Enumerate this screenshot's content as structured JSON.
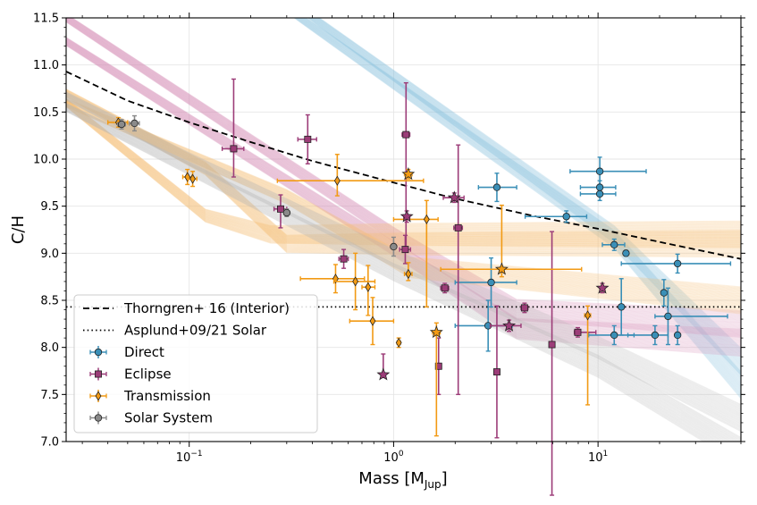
{
  "chart_data": {
    "type": "scatter",
    "xscale": "log",
    "xlim": [
      0.025,
      50
    ],
    "ylim": [
      7.0,
      11.5
    ],
    "xlabel_main": "Mass [M",
    "xlabel_sub": "Jup",
    "xlabel_end": "]",
    "ylabel": "C/H",
    "yticks": [
      "7.0",
      "7.5",
      "8.0",
      "8.5",
      "9.0",
      "9.5",
      "10.0",
      "10.5",
      "11.0",
      "11.5"
    ],
    "xticks": [
      {
        "value": 0.1,
        "base": "10",
        "exp": "−1"
      },
      {
        "value": 1,
        "base": "10",
        "exp": "0"
      },
      {
        "value": 10,
        "base": "10",
        "exp": "1"
      }
    ],
    "grid": true,
    "legend_position": "lower-left",
    "colors": {
      "direct": "#3a8fb7",
      "eclipse": "#9c3c78",
      "transmission": "#f29a14",
      "solar": "#8a8a8a",
      "direct_band": "#8cc2de",
      "eclipse_band": "#d58fb7",
      "transmission_band": "#f6bf78",
      "solar_band": "#b8b8b8"
    },
    "asplund_solar": 8.43,
    "thorngren_curve": [
      [
        0.025,
        10.93
      ],
      [
        0.05,
        10.62
      ],
      [
        0.1,
        10.39
      ],
      [
        0.2,
        10.18
      ],
      [
        0.4,
        9.98
      ],
      [
        1,
        9.75
      ],
      [
        2,
        9.58
      ],
      [
        5,
        9.39
      ],
      [
        10,
        9.26
      ],
      [
        20,
        9.12
      ],
      [
        50,
        8.94
      ]
    ],
    "bands": [
      {
        "name": "direct",
        "lines": 30,
        "segments": [
          [
            [
              0.3,
              11.6
            ],
            [
              12,
              9.15
            ],
            [
              50,
              7.6
            ]
          ],
          [
            [
              0.35,
              11.6
            ],
            [
              12,
              9.2
            ],
            [
              50,
              7.85
            ]
          ]
        ]
      },
      {
        "name": "eclipse",
        "lines": 35,
        "segments": [
          [
            [
              0.025,
              11.25
            ],
            [
              1,
              9.05
            ],
            [
              4,
              8.2
            ],
            [
              50,
              8.05
            ]
          ],
          [
            [
              0.025,
              11.5
            ],
            [
              1,
              9.2
            ],
            [
              4,
              8.4
            ],
            [
              50,
              8.25
            ]
          ]
        ]
      },
      {
        "name": "transmission",
        "lines": 40,
        "segments": [
          [
            [
              0.025,
              10.7
            ],
            [
              0.12,
              9.9
            ],
            [
              0.3,
              9.1
            ],
            [
              1.2,
              9.1
            ],
            [
              50,
              9.1
            ]
          ],
          [
            [
              0.025,
              10.6
            ],
            [
              0.12,
              9.4
            ],
            [
              0.25,
              9.2
            ],
            [
              1.2,
              9.2
            ],
            [
              50,
              9.2
            ]
          ],
          [
            [
              0.025,
              10.6
            ],
            [
              0.3,
              9.6
            ],
            [
              1.2,
              8.85
            ],
            [
              50,
              8.5
            ]
          ]
        ]
      },
      {
        "name": "solar",
        "lines": 30,
        "segments": [
          [
            [
              0.025,
              10.67
            ],
            [
              0.1,
              10.0
            ],
            [
              1,
              8.95
            ],
            [
              10,
              8.0
            ],
            [
              50,
              7.25
            ]
          ],
          [
            [
              0.025,
              10.55
            ],
            [
              0.1,
              9.9
            ],
            [
              1,
              8.8
            ],
            [
              10,
              7.8
            ],
            [
              50,
              6.9
            ]
          ]
        ]
      }
    ],
    "series": [
      {
        "name": "Direct",
        "key": "direct",
        "marker": "circle",
        "points": [
          {
            "x": 10.2,
            "y": 9.87,
            "xerr": [
              2.9,
              7.0
            ],
            "yerr": [
              0.15,
              0.15
            ]
          },
          {
            "x": 10.2,
            "y": 9.7,
            "xerr": [
              2.0,
              2.0
            ],
            "yerr": [
              0.07,
              0.07
            ]
          },
          {
            "x": 10.2,
            "y": 9.63,
            "xerr": [
              2.0,
              2.0
            ],
            "yerr": [
              0.07,
              0.07
            ]
          },
          {
            "x": 3.2,
            "y": 9.7,
            "xerr": [
              0.6,
              0.8
            ],
            "yerr": [
              0.15,
              0.15
            ]
          },
          {
            "x": 7.0,
            "y": 9.39,
            "xerr": [
              2.6,
              1.8
            ],
            "yerr": [
              0.06,
              0.06
            ]
          },
          {
            "x": 12.0,
            "y": 9.09,
            "xerr": [
              1.5,
              1.5
            ],
            "yerr": [
              0.06,
              0.06
            ]
          },
          {
            "x": 13.7,
            "y": 9.0,
            "xerr": [
              0.3,
              0.3
            ],
            "yerr": [
              0.03,
              0.03
            ]
          },
          {
            "x": 24.5,
            "y": 8.89,
            "xerr": [
              11.5,
              20.0
            ],
            "yerr": [
              0.1,
              0.1
            ]
          },
          {
            "x": 3.0,
            "y": 8.69,
            "xerr": [
              1.0,
              1.0
            ],
            "yerr": [
              0.26,
              0.26
            ]
          },
          {
            "x": 2.9,
            "y": 8.23,
            "xerr": [
              0.9,
              0.9
            ],
            "yerr": [
              0.27,
              0.27
            ]
          },
          {
            "x": 21.0,
            "y": 8.58,
            "xerr": [
              0.6,
              0.6
            ],
            "yerr": [
              0.14,
              0.14
            ]
          },
          {
            "x": 13.0,
            "y": 8.43,
            "xerr": [
              0.2,
              0.2
            ],
            "yerr": [
              0.3,
              0.3
            ]
          },
          {
            "x": 22.0,
            "y": 8.33,
            "xerr": [
              3.0,
              21.0
            ],
            "yerr": [
              0.3,
              0.3
            ]
          },
          {
            "x": 12.0,
            "y": 8.13,
            "xerr": [
              3.0,
              3.0
            ],
            "yerr": [
              0.1,
              0.1
            ]
          },
          {
            "x": 19.0,
            "y": 8.13,
            "xerr": [
              5.0,
              3.0
            ],
            "yerr": [
              0.1,
              0.1
            ]
          },
          {
            "x": 24.5,
            "y": 8.13,
            "xerr": [
              0.5,
              0.5
            ],
            "yerr": [
              0.1,
              0.1
            ]
          }
        ]
      },
      {
        "name": "Eclipse",
        "key": "eclipse",
        "marker": "square",
        "points": [
          {
            "x": 0.38,
            "y": 10.21,
            "xerr": [
              0.04,
              0.04
            ],
            "yerr": [
              0.26,
              0.26
            ]
          },
          {
            "x": 0.165,
            "y": 10.11,
            "xerr": [
              0.02,
              0.02
            ],
            "yerr": [
              0.3,
              0.74
            ]
          },
          {
            "x": 1.15,
            "y": 10.26,
            "xerr": [
              0.05,
              0.05
            ],
            "yerr": [
              1.2,
              0.55
            ]
          },
          {
            "x": 0.28,
            "y": 9.47,
            "xerr": [
              0.02,
              0.02
            ],
            "yerr": [
              0.2,
              0.15
            ]
          },
          {
            "x": 2.07,
            "y": 9.27,
            "xerr": [
              0.1,
              0.1
            ],
            "yerr": [
              1.77,
              0.88
            ]
          },
          {
            "x": 1.14,
            "y": 9.04,
            "xerr": [
              0.07,
              0.07
            ],
            "yerr": [
              0.15,
              0.15
            ]
          },
          {
            "x": 0.57,
            "y": 8.94,
            "xerr": [
              0.03,
              0.03
            ],
            "yerr": [
              0.1,
              0.1
            ]
          },
          {
            "x": 1.78,
            "y": 8.63,
            "xerr": [
              0.08,
              0.08
            ],
            "yerr": [
              0.05,
              0.05
            ]
          },
          {
            "x": 4.37,
            "y": 8.42,
            "xerr": [
              0.17,
              0.17
            ],
            "yerr": [
              0.05,
              0.05
            ]
          },
          {
            "x": 5.95,
            "y": 8.03,
            "xerr": [
              0.1,
              0.1
            ],
            "yerr": [
              1.6,
              1.2
            ]
          },
          {
            "x": 7.96,
            "y": 8.16,
            "xerr": [
              0.3,
              1.8
            ],
            "yerr": [
              0.05,
              0.05
            ]
          },
          {
            "x": 1.66,
            "y": 7.8,
            "xerr": [
              0.03,
              0.03
            ],
            "yerr": [
              0.3,
              0.3
            ]
          },
          {
            "x": 3.2,
            "y": 7.74,
            "xerr": [
              0.1,
              0.1
            ],
            "yerr": [
              0.7,
              0.7
            ]
          }
        ]
      },
      {
        "name": "Transmission",
        "key": "transmission",
        "marker": "diamond",
        "points": [
          {
            "x": 0.045,
            "y": 10.39,
            "xerr": [
              0.005,
              0.005
            ],
            "yerr": [
              0.05,
              0.05
            ]
          },
          {
            "x": 0.098,
            "y": 9.81,
            "xerr": [
              0.005,
              0.005
            ],
            "yerr": [
              0.08,
              0.08
            ]
          },
          {
            "x": 0.104,
            "y": 9.79,
            "xerr": [
              0.005,
              0.005
            ],
            "yerr": [
              0.08,
              0.08
            ]
          },
          {
            "x": 0.53,
            "y": 9.77,
            "xerr": [
              0.26,
              0.87
            ],
            "yerr": [
              0.16,
              0.28
            ]
          },
          {
            "x": 1.45,
            "y": 9.36,
            "xerr": [
              0.45,
              0.2
            ],
            "yerr": [
              0.93,
              0.2
            ]
          },
          {
            "x": 1.18,
            "y": 8.78,
            "xerr": [
              0.05,
              0.05
            ],
            "yerr": [
              0.07,
              0.12
            ]
          },
          {
            "x": 0.52,
            "y": 8.73,
            "xerr": [
              0.17,
              0.2
            ],
            "yerr": [
              0.15,
              0.15
            ]
          },
          {
            "x": 0.65,
            "y": 8.7,
            "xerr": [
              0.14,
              0.16
            ],
            "yerr": [
              0.3,
              0.3
            ]
          },
          {
            "x": 0.75,
            "y": 8.64,
            "xerr": [
              0.05,
              0.06
            ],
            "yerr": [
              0.3,
              0.23
            ]
          },
          {
            "x": 0.79,
            "y": 8.28,
            "xerr": [
              0.18,
              0.21
            ],
            "yerr": [
              0.25,
              0.25
            ]
          },
          {
            "x": 1.06,
            "y": 8.05,
            "xerr": [
              0.02,
              0.02
            ],
            "yerr": [
              0.05,
              0.05
            ]
          },
          {
            "x": 8.9,
            "y": 8.34,
            "xerr": [
              0.3,
              0.3
            ],
            "yerr": [
              0.95,
              0.1
            ]
          }
        ]
      },
      {
        "name": "Solar System",
        "key": "solar",
        "marker": "circle",
        "points": [
          {
            "x": 0.0467,
            "y": 10.37,
            "xerr": [
              0.002,
              0.002
            ],
            "yerr": [
              0.05,
              0.05
            ]
          },
          {
            "x": 0.054,
            "y": 10.38,
            "xerr": [
              0.003,
              0.003
            ],
            "yerr": [
              0.08,
              0.08
            ]
          },
          {
            "x": 0.3,
            "y": 9.43,
            "xerr": [
              0.01,
              0.01
            ],
            "yerr": [
              0.04,
              0.04
            ]
          },
          {
            "x": 1.0,
            "y": 9.07,
            "xerr": [
              0.02,
              0.02
            ],
            "yerr": [
              0.1,
              0.1
            ]
          }
        ]
      },
      {
        "name": "Stars",
        "key": "stars",
        "marker": "star",
        "points": [
          {
            "x": 1.18,
            "y": 9.84,
            "color": "transmission",
            "xerr": [
              0.05,
              0.05
            ],
            "yerr": [
              0.05,
              0.05
            ]
          },
          {
            "x": 1.98,
            "y": 9.59,
            "color": "eclipse",
            "xerr": [
              0.23,
              0.23
            ],
            "yerr": [
              0.05,
              0.05
            ]
          },
          {
            "x": 1.16,
            "y": 9.39,
            "color": "eclipse",
            "xerr": [
              0.04,
              0.04
            ],
            "yerr": [
              0.06,
              0.06
            ]
          },
          {
            "x": 3.38,
            "y": 8.83,
            "color": "transmission",
            "xerr": [
              1.68,
              4.93
            ],
            "yerr": [
              0.08,
              0.68
            ]
          },
          {
            "x": 10.5,
            "y": 8.63,
            "color": "eclipse",
            "xerr": [
              0.3,
              0.3
            ],
            "yerr": [
              0.05,
              0.05
            ]
          },
          {
            "x": 3.67,
            "y": 8.23,
            "color": "eclipse",
            "xerr": [
              0.7,
              0.53
            ],
            "yerr": [
              0.06,
              0.06
            ]
          },
          {
            "x": 1.62,
            "y": 8.16,
            "color": "transmission",
            "xerr": [
              0.07,
              0.07
            ],
            "yerr": [
              1.1,
              0.1
            ]
          },
          {
            "x": 0.89,
            "y": 7.71,
            "color": "eclipse",
            "xerr": [
              0.02,
              0.02
            ],
            "yerr": [
              0.03,
              0.22
            ]
          }
        ]
      }
    ],
    "legend": [
      {
        "label": "Thorngren+ 16 (Interior)",
        "style": "dashed"
      },
      {
        "label": "Asplund+09/21 Solar",
        "style": "dotted"
      },
      {
        "label": "Direct",
        "style": "marker",
        "key": "direct",
        "marker": "circle"
      },
      {
        "label": "Eclipse",
        "style": "marker",
        "key": "eclipse",
        "marker": "square"
      },
      {
        "label": "Transmission",
        "style": "marker",
        "key": "transmission",
        "marker": "diamond"
      },
      {
        "label": "Solar System",
        "style": "marker",
        "key": "solar",
        "marker": "circle"
      }
    ]
  }
}
